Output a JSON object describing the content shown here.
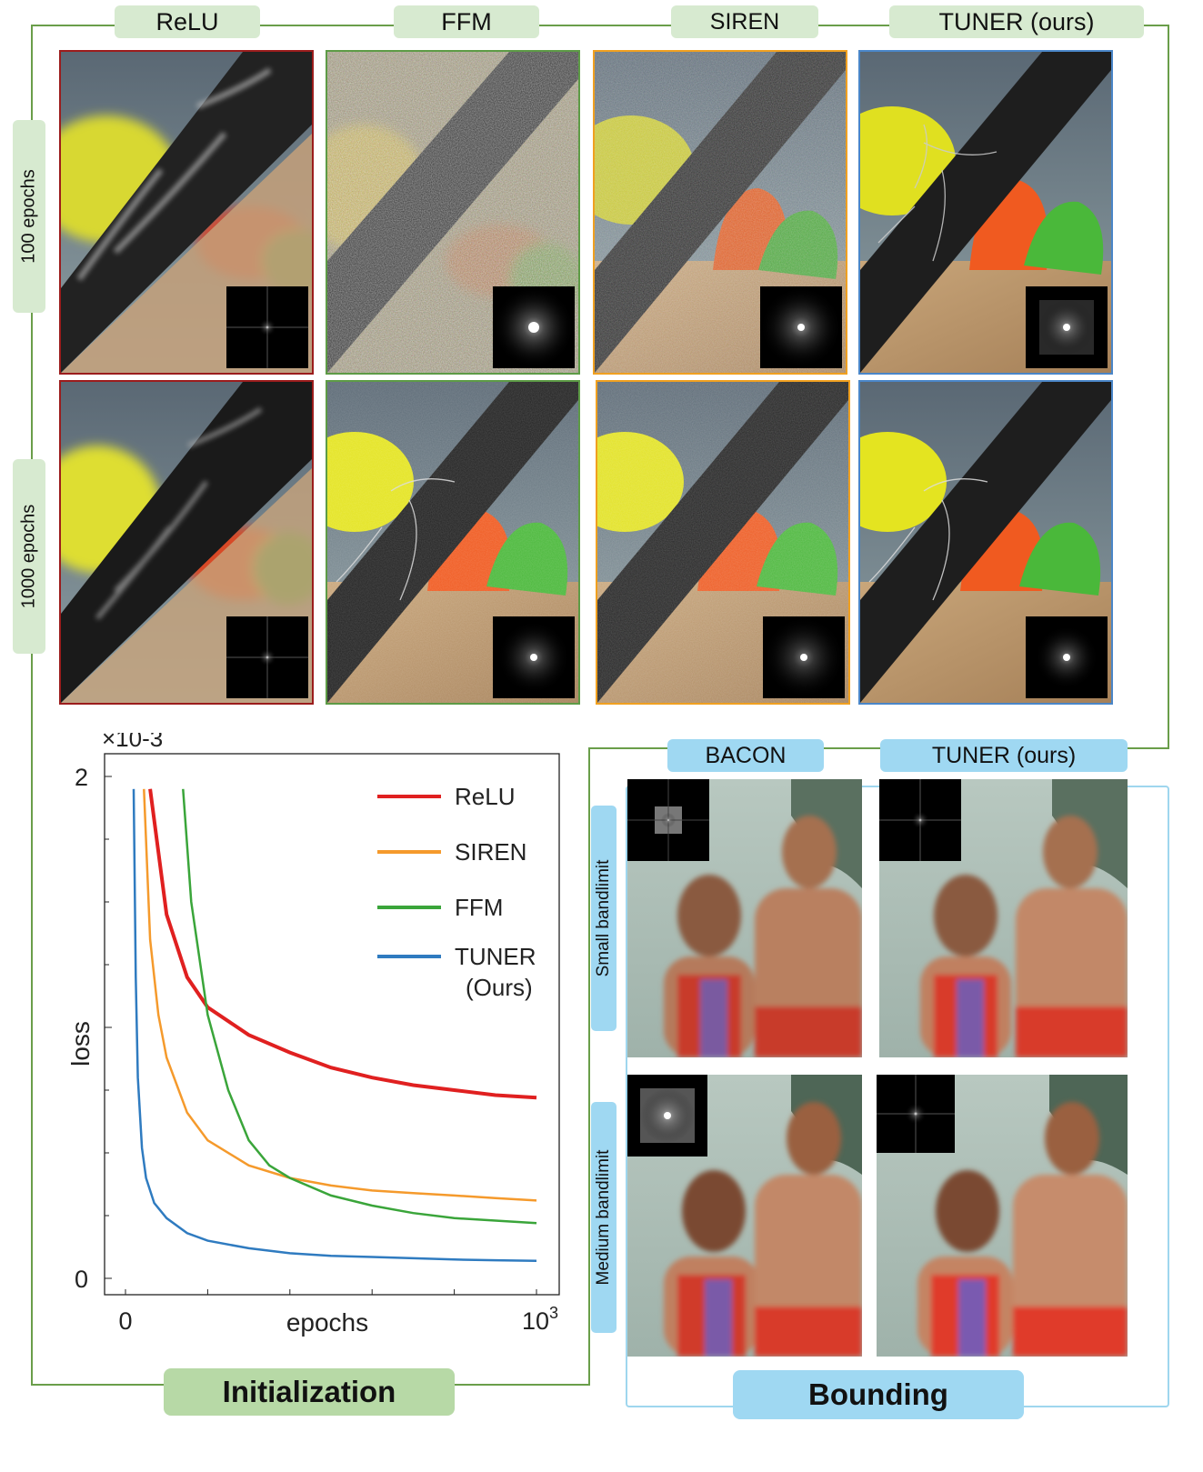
{
  "columns": [
    "ReLU",
    "FFM",
    "SIREN",
    "TUNER (ours)"
  ],
  "rows": [
    "100 epochs",
    "1000 epochs"
  ],
  "chart_data": {
    "type": "line",
    "xlabel": "epochs",
    "ylabel": "loss",
    "x_ticks": [
      "0",
      "10^3"
    ],
    "y_ticks": [
      "0",
      "2"
    ],
    "y_multiplier": "×10-3",
    "xlim": [
      0,
      1000
    ],
    "ylim": [
      0,
      2
    ],
    "legend_position": "top-right",
    "series": [
      {
        "name": "ReLU",
        "color": "#e02020",
        "x": [
          60,
          100,
          150,
          200,
          300,
          400,
          500,
          600,
          700,
          800,
          900,
          1000
        ],
        "y": [
          1.95,
          1.45,
          1.2,
          1.08,
          0.97,
          0.9,
          0.84,
          0.8,
          0.77,
          0.75,
          0.73,
          0.72
        ]
      },
      {
        "name": "SIREN",
        "color": "#f59a2c",
        "x": [
          45,
          60,
          80,
          100,
          150,
          200,
          300,
          400,
          500,
          600,
          700,
          800,
          900,
          1000
        ],
        "y": [
          1.95,
          1.35,
          1.05,
          0.88,
          0.66,
          0.55,
          0.45,
          0.4,
          0.37,
          0.35,
          0.34,
          0.33,
          0.32,
          0.31
        ]
      },
      {
        "name": "FFM",
        "color": "#3aa53a",
        "x": [
          140,
          160,
          200,
          250,
          300,
          350,
          400,
          500,
          600,
          700,
          800,
          900,
          1000
        ],
        "y": [
          1.95,
          1.5,
          1.05,
          0.75,
          0.55,
          0.45,
          0.4,
          0.33,
          0.29,
          0.26,
          0.24,
          0.23,
          0.22
        ]
      },
      {
        "name": "TUNER\n(Ours)",
        "color": "#2f7bc0",
        "x": [
          20,
          25,
          30,
          40,
          50,
          70,
          100,
          150,
          200,
          300,
          400,
          500,
          600,
          700,
          800,
          900,
          1000
        ],
        "y": [
          1.95,
          1.2,
          0.8,
          0.52,
          0.4,
          0.3,
          0.24,
          0.18,
          0.15,
          0.12,
          0.1,
          0.09,
          0.085,
          0.08,
          0.075,
          0.072,
          0.07
        ]
      }
    ]
  },
  "bounding": {
    "columns": [
      "BACON",
      "TUNER (ours)"
    ],
    "rows": [
      "Small bandlimit",
      "Medium bandlimit"
    ]
  },
  "section_labels": {
    "initialization": "Initialization",
    "bounding": "Bounding"
  },
  "colors": {
    "relu": "#9b1c1c",
    "ffm": "#5d9b46",
    "siren": "#f0a020",
    "tuner": "#4a86c8"
  }
}
